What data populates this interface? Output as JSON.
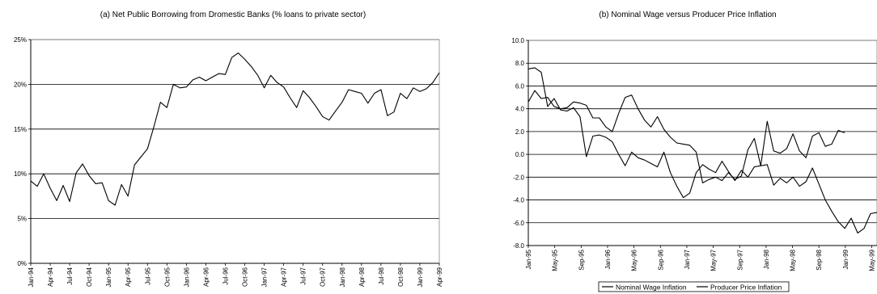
{
  "chart_data": [
    {
      "type": "line",
      "title": "(a) Net Public Borrowing from Dromestic Banks (% loans to private sector)",
      "xlabel": "",
      "ylabel": "",
      "ylim": [
        0,
        25
      ],
      "yticks": [
        "0%",
        "5%",
        "10%",
        "15%",
        "20%",
        "25%"
      ],
      "ytick_values": [
        0,
        5,
        10,
        15,
        20,
        25
      ],
      "grid": "horizontal",
      "xtick_labels": [
        "Jan-94",
        "Apr-94",
        "Jul-94",
        "Oct-94",
        "Jan-95",
        "Apr-95",
        "Jul-95",
        "Oct-95",
        "Jan-96",
        "Apr-96",
        "Jul-96",
        "Oct-96",
        "Jan-97",
        "Apr-97",
        "Jul-97",
        "Oct-97",
        "Jan-98",
        "Apr-98",
        "Jul-98",
        "Oct-98",
        "Jan-99",
        "Apr-99"
      ],
      "series": [
        {
          "name": "",
          "color": "#000000",
          "values": [
            9.2,
            8.6,
            10.0,
            8.4,
            7.0,
            8.7,
            6.9,
            10.1,
            11.1,
            9.8,
            8.9,
            9.0,
            7.0,
            6.5,
            8.8,
            7.5,
            11.0,
            11.9,
            12.8,
            15.3,
            18.0,
            17.4,
            20.0,
            19.6,
            19.7,
            20.5,
            20.8,
            20.4,
            20.8,
            21.2,
            21.1,
            23.0,
            23.5,
            22.8,
            22.0,
            21.0,
            19.6,
            21.0,
            20.2,
            19.7,
            18.5,
            17.4,
            19.3,
            18.5,
            17.5,
            16.4,
            16.0,
            17.0,
            18.0,
            19.4,
            19.2,
            19.0,
            17.9,
            19.0,
            19.4,
            16.5,
            16.9,
            19.0,
            18.4,
            19.6,
            19.2,
            19.5,
            20.2,
            21.3
          ]
        }
      ]
    },
    {
      "type": "line",
      "title": "(b) Nominal Wage versus Producer Price Inflation",
      "xlabel": "",
      "ylabel": "",
      "ylim": [
        -8,
        10
      ],
      "yticks": [
        "-8.0",
        "-6.0",
        "-4.0",
        "-2.0",
        "0.0",
        "2.0",
        "4.0",
        "6.0",
        "8.0",
        "10.0"
      ],
      "ytick_values": [
        -8,
        -6,
        -4,
        -2,
        0,
        2,
        4,
        6,
        8,
        10
      ],
      "grid": "horizontal",
      "xtick_labels": [
        "Jan-95",
        "May-95",
        "Sep-95",
        "Jan-96",
        "May-96",
        "Sep-96",
        "Jan-97",
        "May-97",
        "Sep-97",
        "Jan-98",
        "May-98",
        "Sep-98",
        "Jan-99",
        "May-99"
      ],
      "legend": {
        "position": "bottom",
        "entries": [
          "Nominal Wage Inflation",
          "Producer Price Inflation"
        ]
      },
      "series": [
        {
          "name": "Nominal Wage Inflation",
          "color": "#000000",
          "values": [
            7.5,
            7.6,
            7.2,
            4.2,
            4.9,
            3.9,
            3.8,
            4.1,
            3.3,
            -0.2,
            1.6,
            1.7,
            1.5,
            1.1,
            0.0,
            -1.0,
            0.2,
            -0.3,
            -0.5,
            -0.8,
            -1.1,
            0.2,
            -1.6,
            -2.8,
            -3.8,
            -3.4,
            -1.6,
            -0.9,
            -1.3,
            -1.6,
            -0.6,
            -1.5,
            -2.3,
            -1.4,
            -2.0,
            -1.1,
            -1.0,
            2.9,
            0.3,
            0.1,
            0.5,
            1.8,
            0.3,
            -0.3,
            1.6,
            1.9,
            0.7,
            0.9,
            2.1,
            1.9
          ]
        },
        {
          "name": "Producer Price Inflation",
          "color": "#000000",
          "values": [
            4.6,
            5.6,
            4.9,
            5.0,
            4.2,
            4.0,
            4.1,
            4.6,
            4.5,
            4.3,
            3.2,
            3.2,
            2.4,
            2.0,
            3.6,
            5.0,
            5.2,
            4.0,
            3.0,
            2.4,
            3.3,
            2.2,
            1.5,
            1.0,
            0.9,
            0.8,
            0.2,
            -2.5,
            -2.2,
            -2.0,
            -2.3,
            -1.6,
            -2.2,
            -1.9,
            0.4,
            1.4,
            -1.0,
            -0.9,
            -2.7,
            -2.1,
            -2.5,
            -2.0,
            -2.8,
            -2.4,
            -1.2,
            -2.6,
            -4.0,
            -5.0,
            -5.9,
            -6.5,
            -5.6,
            -6.9,
            -6.5,
            -5.2,
            -5.1
          ]
        }
      ]
    }
  ]
}
